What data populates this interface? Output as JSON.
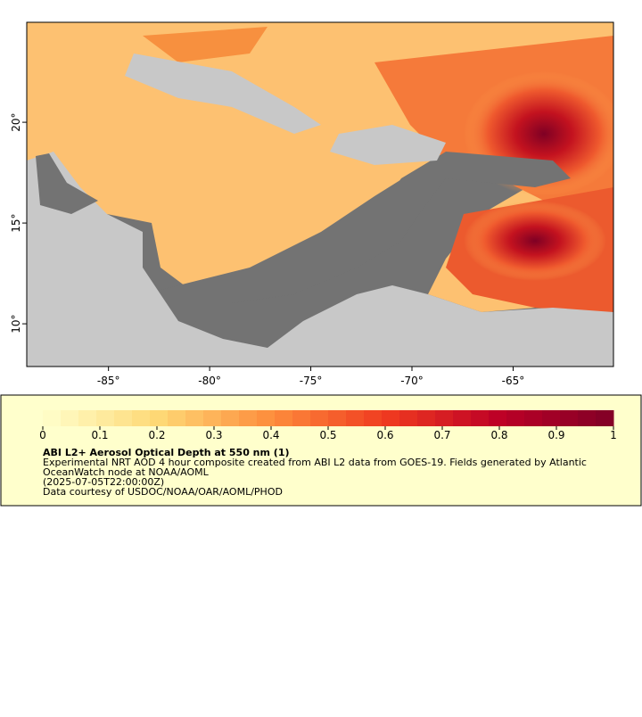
{
  "map": {
    "xlim": [
      -89.04,
      -60.04
    ],
    "ylim": [
      7.88,
      24.96
    ],
    "xticks": [
      {
        "value": -85,
        "label": "-85°"
      },
      {
        "value": -80,
        "label": "-80°"
      },
      {
        "value": -75,
        "label": "-75°"
      },
      {
        "value": -70,
        "label": "-70°"
      },
      {
        "value": -65,
        "label": "-65°"
      }
    ],
    "yticks": [
      {
        "value": 20,
        "label": "20°"
      },
      {
        "value": 15,
        "label": "15°"
      },
      {
        "value": 10,
        "label": "10°"
      }
    ]
  },
  "colorbar": {
    "lim": [
      0,
      1
    ],
    "ticks": [
      0,
      0.1,
      0.2,
      0.3,
      0.4,
      0.5,
      0.6,
      0.7,
      0.8,
      0.9,
      1
    ]
  },
  "legend": {
    "title": "ABI L2+ Aerosol Optical Depth at 550 nm (1)",
    "lines": [
      "Experimental NRT AOD 4 hour composite created from ABI L2 data from GOES-19. Fields generated by Atlantic",
      "OceanWatch node at NOAA/AOML",
      "(2025-07-05T22:00:00Z)",
      "Data courtesy of USDOC/NOAA/OAR/AOML/PHOD"
    ]
  }
}
